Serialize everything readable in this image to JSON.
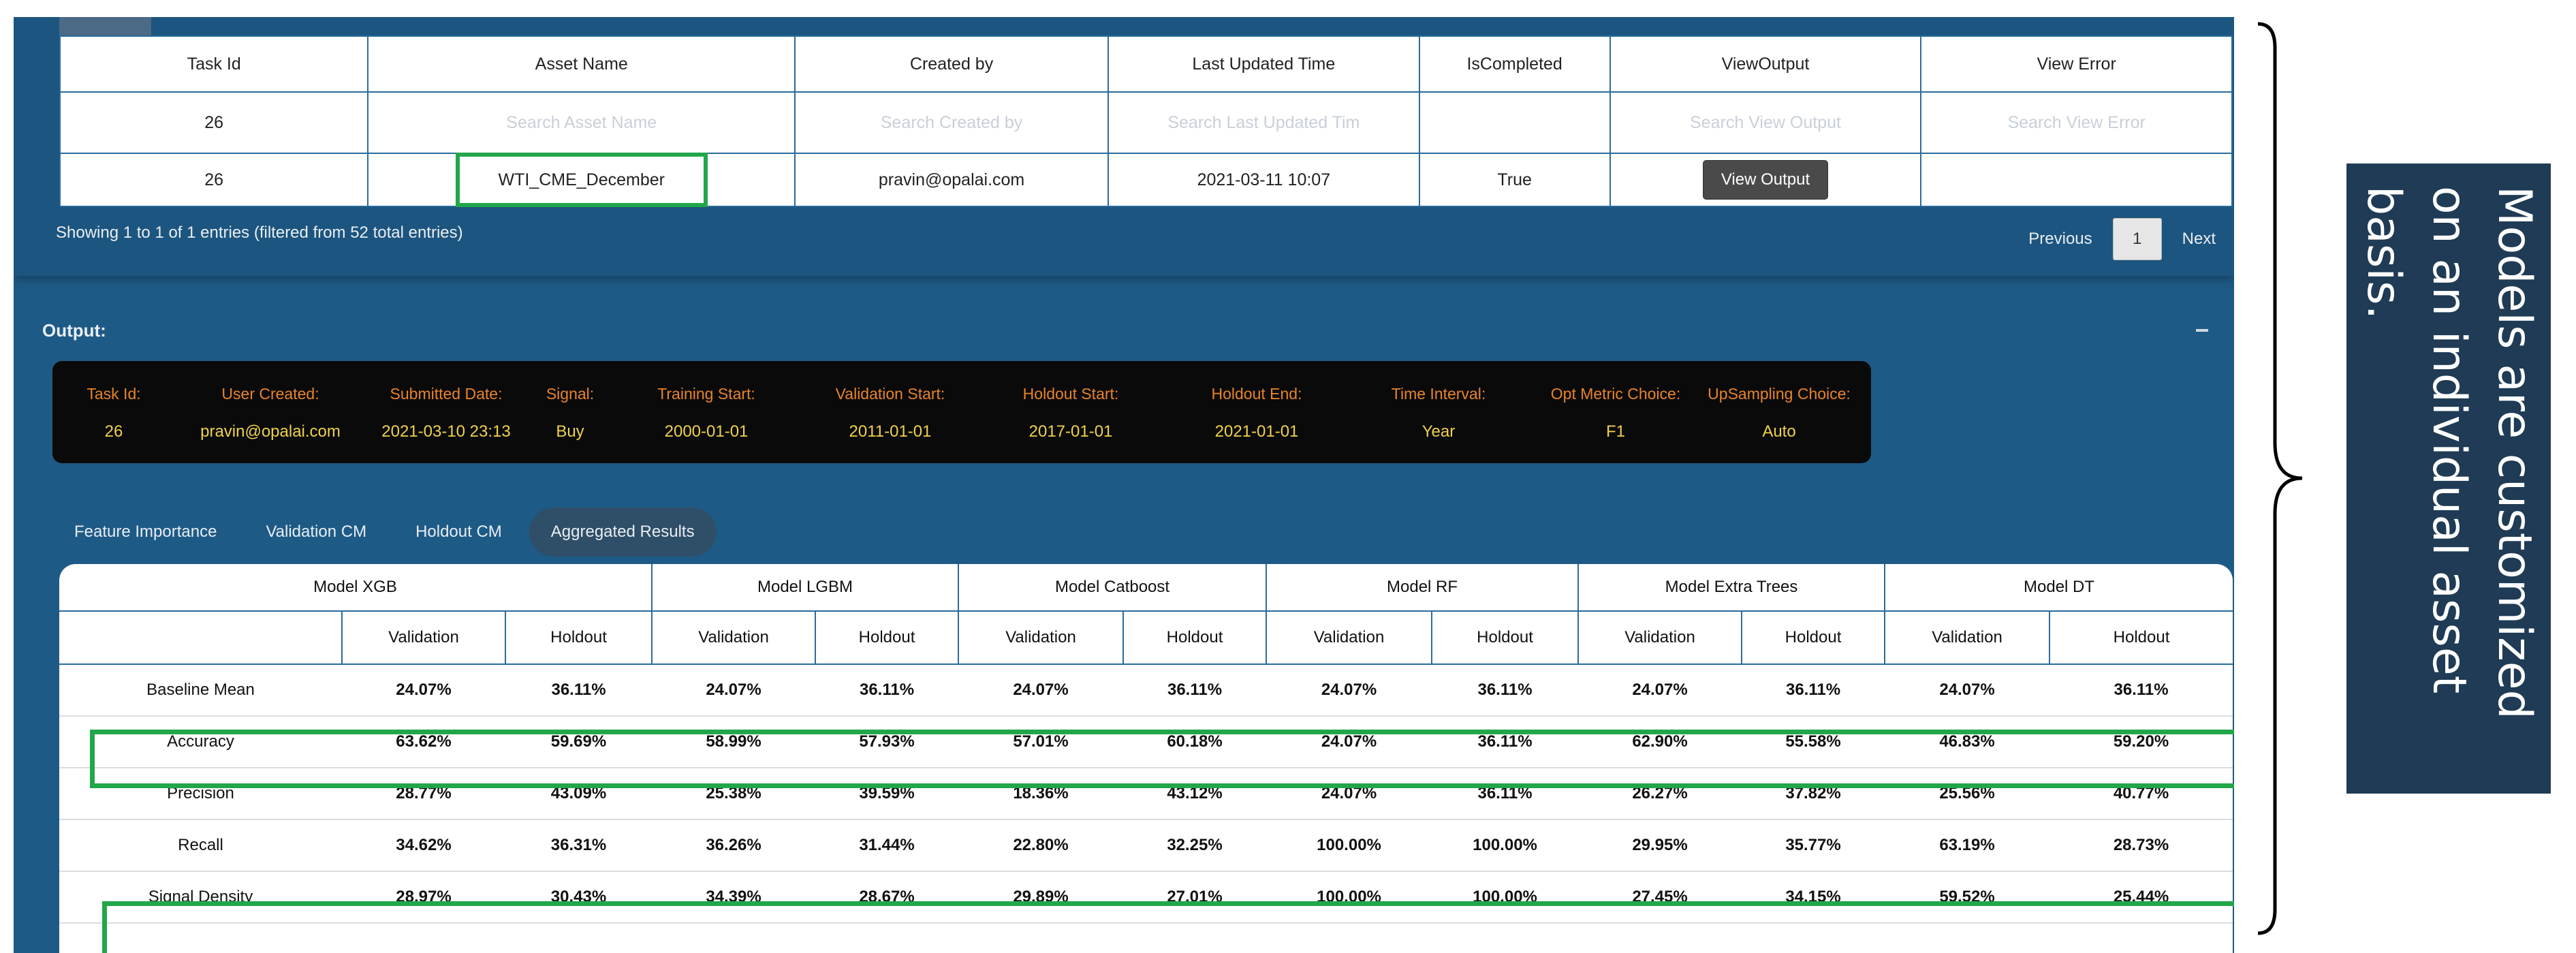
{
  "top_table": {
    "tab_stub": "",
    "headers": [
      "Task Id",
      "Asset Name",
      "Created by",
      "Last Updated Time",
      "IsCompleted",
      "ViewOutput",
      "View Error"
    ],
    "search_row": [
      "26",
      "Search Asset Name",
      "Search Created by",
      "Search Last Updated Tim",
      "",
      "Search View Output",
      "Search View Error"
    ],
    "data_row": {
      "task_id": "26",
      "asset_name": "WTI_CME_December",
      "created_by": "pravin@opalai.com",
      "last_updated": "2021-03-11 10:07",
      "is_completed": "True",
      "view_output_button": "View Output",
      "view_error": ""
    },
    "showing_text": "Showing 1 to 1 of 1 entries (filtered from 52 total entries)",
    "pager": {
      "previous": "Previous",
      "page": "1",
      "next": "Next"
    }
  },
  "output": {
    "title": "Output:",
    "info": [
      {
        "label": "Task Id:",
        "value": "26"
      },
      {
        "label": "User Created:",
        "value": "pravin@opalai.com"
      },
      {
        "label": "Submitted Date:",
        "value": "2021-03-10 23:13"
      },
      {
        "label": "Signal:",
        "value": "Buy"
      },
      {
        "label": "Training Start:",
        "value": "2000-01-01"
      },
      {
        "label": "Validation Start:",
        "value": "2011-01-01"
      },
      {
        "label": "Holdout Start:",
        "value": "2017-01-01"
      },
      {
        "label": "Holdout End:",
        "value": "2021-01-01"
      },
      {
        "label": "Time Interval:",
        "value": "Year"
      },
      {
        "label": "Opt Metric Choice:",
        "value": "F1"
      },
      {
        "label": "UpSampling Choice:",
        "value": "Auto"
      }
    ],
    "tabs": [
      "Feature Importance",
      "Validation CM",
      "Holdout CM",
      "Aggregated Results"
    ],
    "active_tab": "Aggregated Results"
  },
  "results": {
    "models": [
      "Model XGB",
      "Model LGBM",
      "Model Catboost",
      "Model RF",
      "Model Extra Trees",
      "Model DT"
    ],
    "sub_headers": [
      "Validation",
      "Holdout"
    ],
    "rows": [
      {
        "metric": "Baseline Mean",
        "values": [
          "24.07%",
          "36.11%",
          "24.07%",
          "36.11%",
          "24.07%",
          "36.11%",
          "24.07%",
          "36.11%",
          "24.07%",
          "36.11%",
          "24.07%",
          "36.11%"
        ]
      },
      {
        "metric": "Accuracy",
        "values": [
          "63.62%",
          "59.69%",
          "58.99%",
          "57.93%",
          "57.01%",
          "60.18%",
          "24.07%",
          "36.11%",
          "62.90%",
          "55.58%",
          "46.83%",
          "59.20%"
        ]
      },
      {
        "metric": "Precision",
        "values": [
          "28.77%",
          "43.09%",
          "25.38%",
          "39.59%",
          "18.36%",
          "43.12%",
          "24.07%",
          "36.11%",
          "26.27%",
          "37.82%",
          "25.56%",
          "40.77%"
        ]
      },
      {
        "metric": "Recall",
        "values": [
          "34.62%",
          "36.31%",
          "36.26%",
          "31.44%",
          "22.80%",
          "32.25%",
          "100.00%",
          "100.00%",
          "29.95%",
          "35.77%",
          "63.19%",
          "28.73%"
        ]
      },
      {
        "metric": "Signal Density",
        "values": [
          "28.97%",
          "30.43%",
          "34.39%",
          "28.67%",
          "29.89%",
          "27.01%",
          "100.00%",
          "100.00%",
          "27.45%",
          "34.15%",
          "59.52%",
          "25.44%"
        ]
      }
    ]
  },
  "callout": {
    "text": "Models are customized on an individual asset basis."
  },
  "colors": {
    "background": "#1e5a86",
    "highlight": "#22a64a",
    "info_label": "#e8842a",
    "info_value": "#f0d24a",
    "callout_bg": "#1f3b55"
  }
}
